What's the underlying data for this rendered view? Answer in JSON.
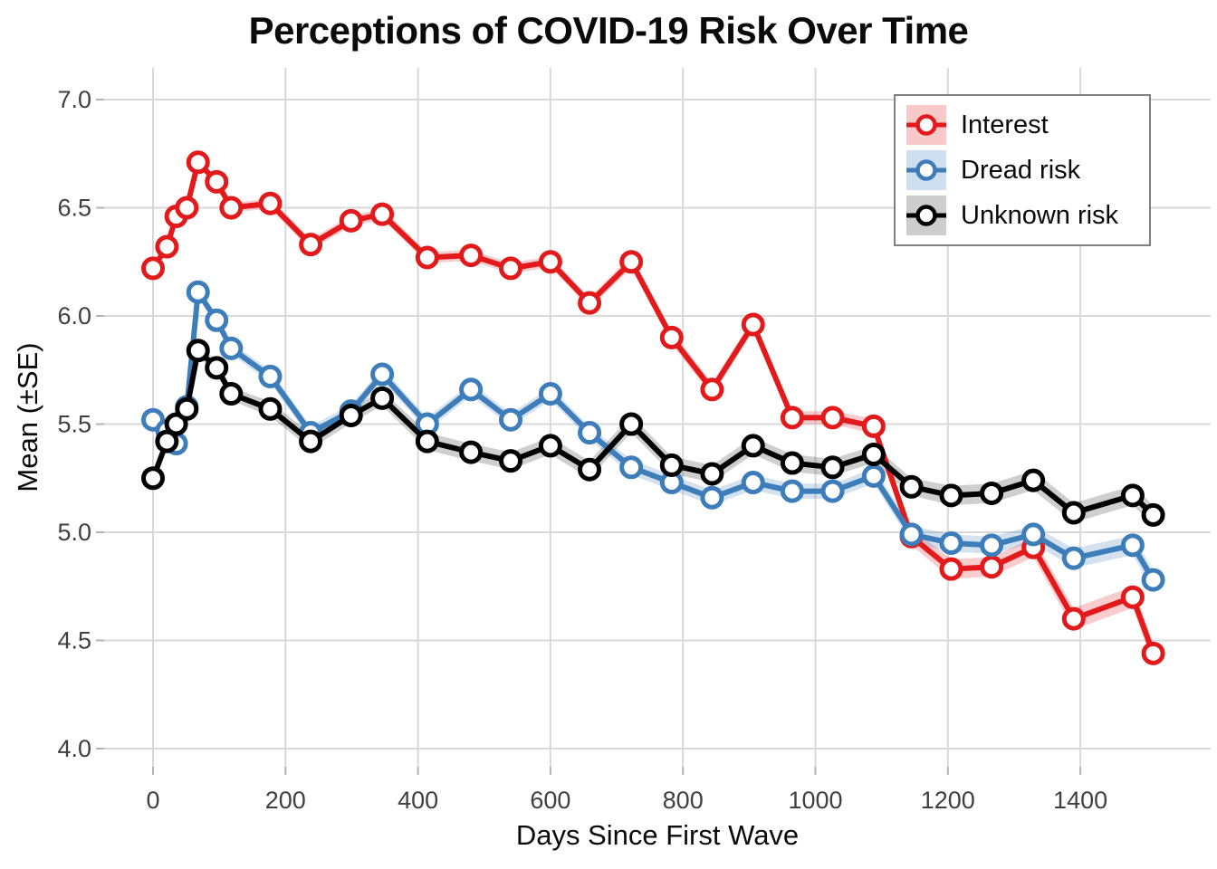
{
  "chart_data": {
    "type": "line",
    "title": "Perceptions of COVID-19 Risk Over Time",
    "xlabel": "Days Since First Wave",
    "ylabel": "Mean (±SE)",
    "legend_position": "top-right",
    "grid": true,
    "grid_color": "#d9d9d9",
    "tick_label_color": "#404040",
    "x_ticks": [
      0,
      200,
      400,
      600,
      800,
      1000,
      1200,
      1400
    ],
    "y_ticks": [
      7.0,
      6.5,
      6.0,
      5.5,
      5.0,
      4.5,
      4.0
    ],
    "xlim": [
      -74,
      1594
    ],
    "ylim": [
      3.93,
      7.1
    ],
    "x": [
      0,
      21,
      35,
      51,
      68,
      96,
      118,
      177,
      238,
      299,
      346,
      414,
      480,
      540,
      600,
      659,
      722,
      783,
      844,
      906,
      965,
      1026,
      1088,
      1145,
      1205,
      1266,
      1329,
      1390,
      1479,
      1510
    ],
    "series": [
      {
        "name": "Interest",
        "color": "#e31a1c",
        "ribbon_color": "rgba(227,26,28,0.22)",
        "swatch_color": "#f8c9c9",
        "values": [
          6.22,
          6.32,
          6.46,
          6.5,
          6.71,
          6.62,
          6.5,
          6.52,
          6.33,
          6.44,
          6.47,
          6.27,
          6.28,
          6.22,
          6.25,
          6.06,
          6.25,
          5.9,
          5.66,
          5.96,
          5.53,
          5.53,
          5.49,
          4.98,
          4.83,
          4.84,
          4.93,
          4.6,
          4.7,
          4.44
        ],
        "se": [
          0.02,
          0.02,
          0.02,
          0.02,
          0.02,
          0.02,
          0.02,
          0.025,
          0.025,
          0.025,
          0.025,
          0.025,
          0.025,
          0.025,
          0.025,
          0.025,
          0.03,
          0.03,
          0.03,
          0.03,
          0.03,
          0.03,
          0.035,
          0.04,
          0.045,
          0.045,
          0.045,
          0.05,
          0.05,
          0.05
        ]
      },
      {
        "name": "Dread risk",
        "color": "#3c7dba",
        "ribbon_color": "rgba(60,125,186,0.22)",
        "swatch_color": "#cedfef",
        "values": [
          5.52,
          5.47,
          5.41,
          5.58,
          6.11,
          5.98,
          5.85,
          5.72,
          5.46,
          5.56,
          5.73,
          5.5,
          5.66,
          5.52,
          5.64,
          5.46,
          5.3,
          5.23,
          5.16,
          5.23,
          5.19,
          5.19,
          5.26,
          4.99,
          4.95,
          4.94,
          4.99,
          4.88,
          4.94,
          4.78
        ],
        "se": [
          0.025,
          0.025,
          0.025,
          0.025,
          0.025,
          0.025,
          0.025,
          0.03,
          0.03,
          0.03,
          0.03,
          0.03,
          0.03,
          0.03,
          0.03,
          0.03,
          0.035,
          0.035,
          0.035,
          0.035,
          0.035,
          0.035,
          0.035,
          0.04,
          0.04,
          0.04,
          0.04,
          0.045,
          0.045,
          0.045
        ]
      },
      {
        "name": "Unknown risk",
        "color": "#000000",
        "ribbon_color": "rgba(0,0,0,0.19)",
        "swatch_color": "#cdcdcd",
        "values": [
          5.25,
          5.42,
          5.5,
          5.57,
          5.84,
          5.76,
          5.64,
          5.57,
          5.42,
          5.54,
          5.62,
          5.42,
          5.37,
          5.33,
          5.4,
          5.29,
          5.5,
          5.31,
          5.27,
          5.4,
          5.32,
          5.3,
          5.36,
          5.21,
          5.17,
          5.18,
          5.24,
          5.09,
          5.17,
          5.08
        ],
        "se": [
          0.03,
          0.03,
          0.03,
          0.03,
          0.03,
          0.03,
          0.03,
          0.035,
          0.035,
          0.035,
          0.035,
          0.04,
          0.04,
          0.04,
          0.04,
          0.04,
          0.04,
          0.04,
          0.04,
          0.04,
          0.04,
          0.04,
          0.04,
          0.04,
          0.045,
          0.045,
          0.045,
          0.045,
          0.045,
          0.045
        ]
      }
    ]
  }
}
